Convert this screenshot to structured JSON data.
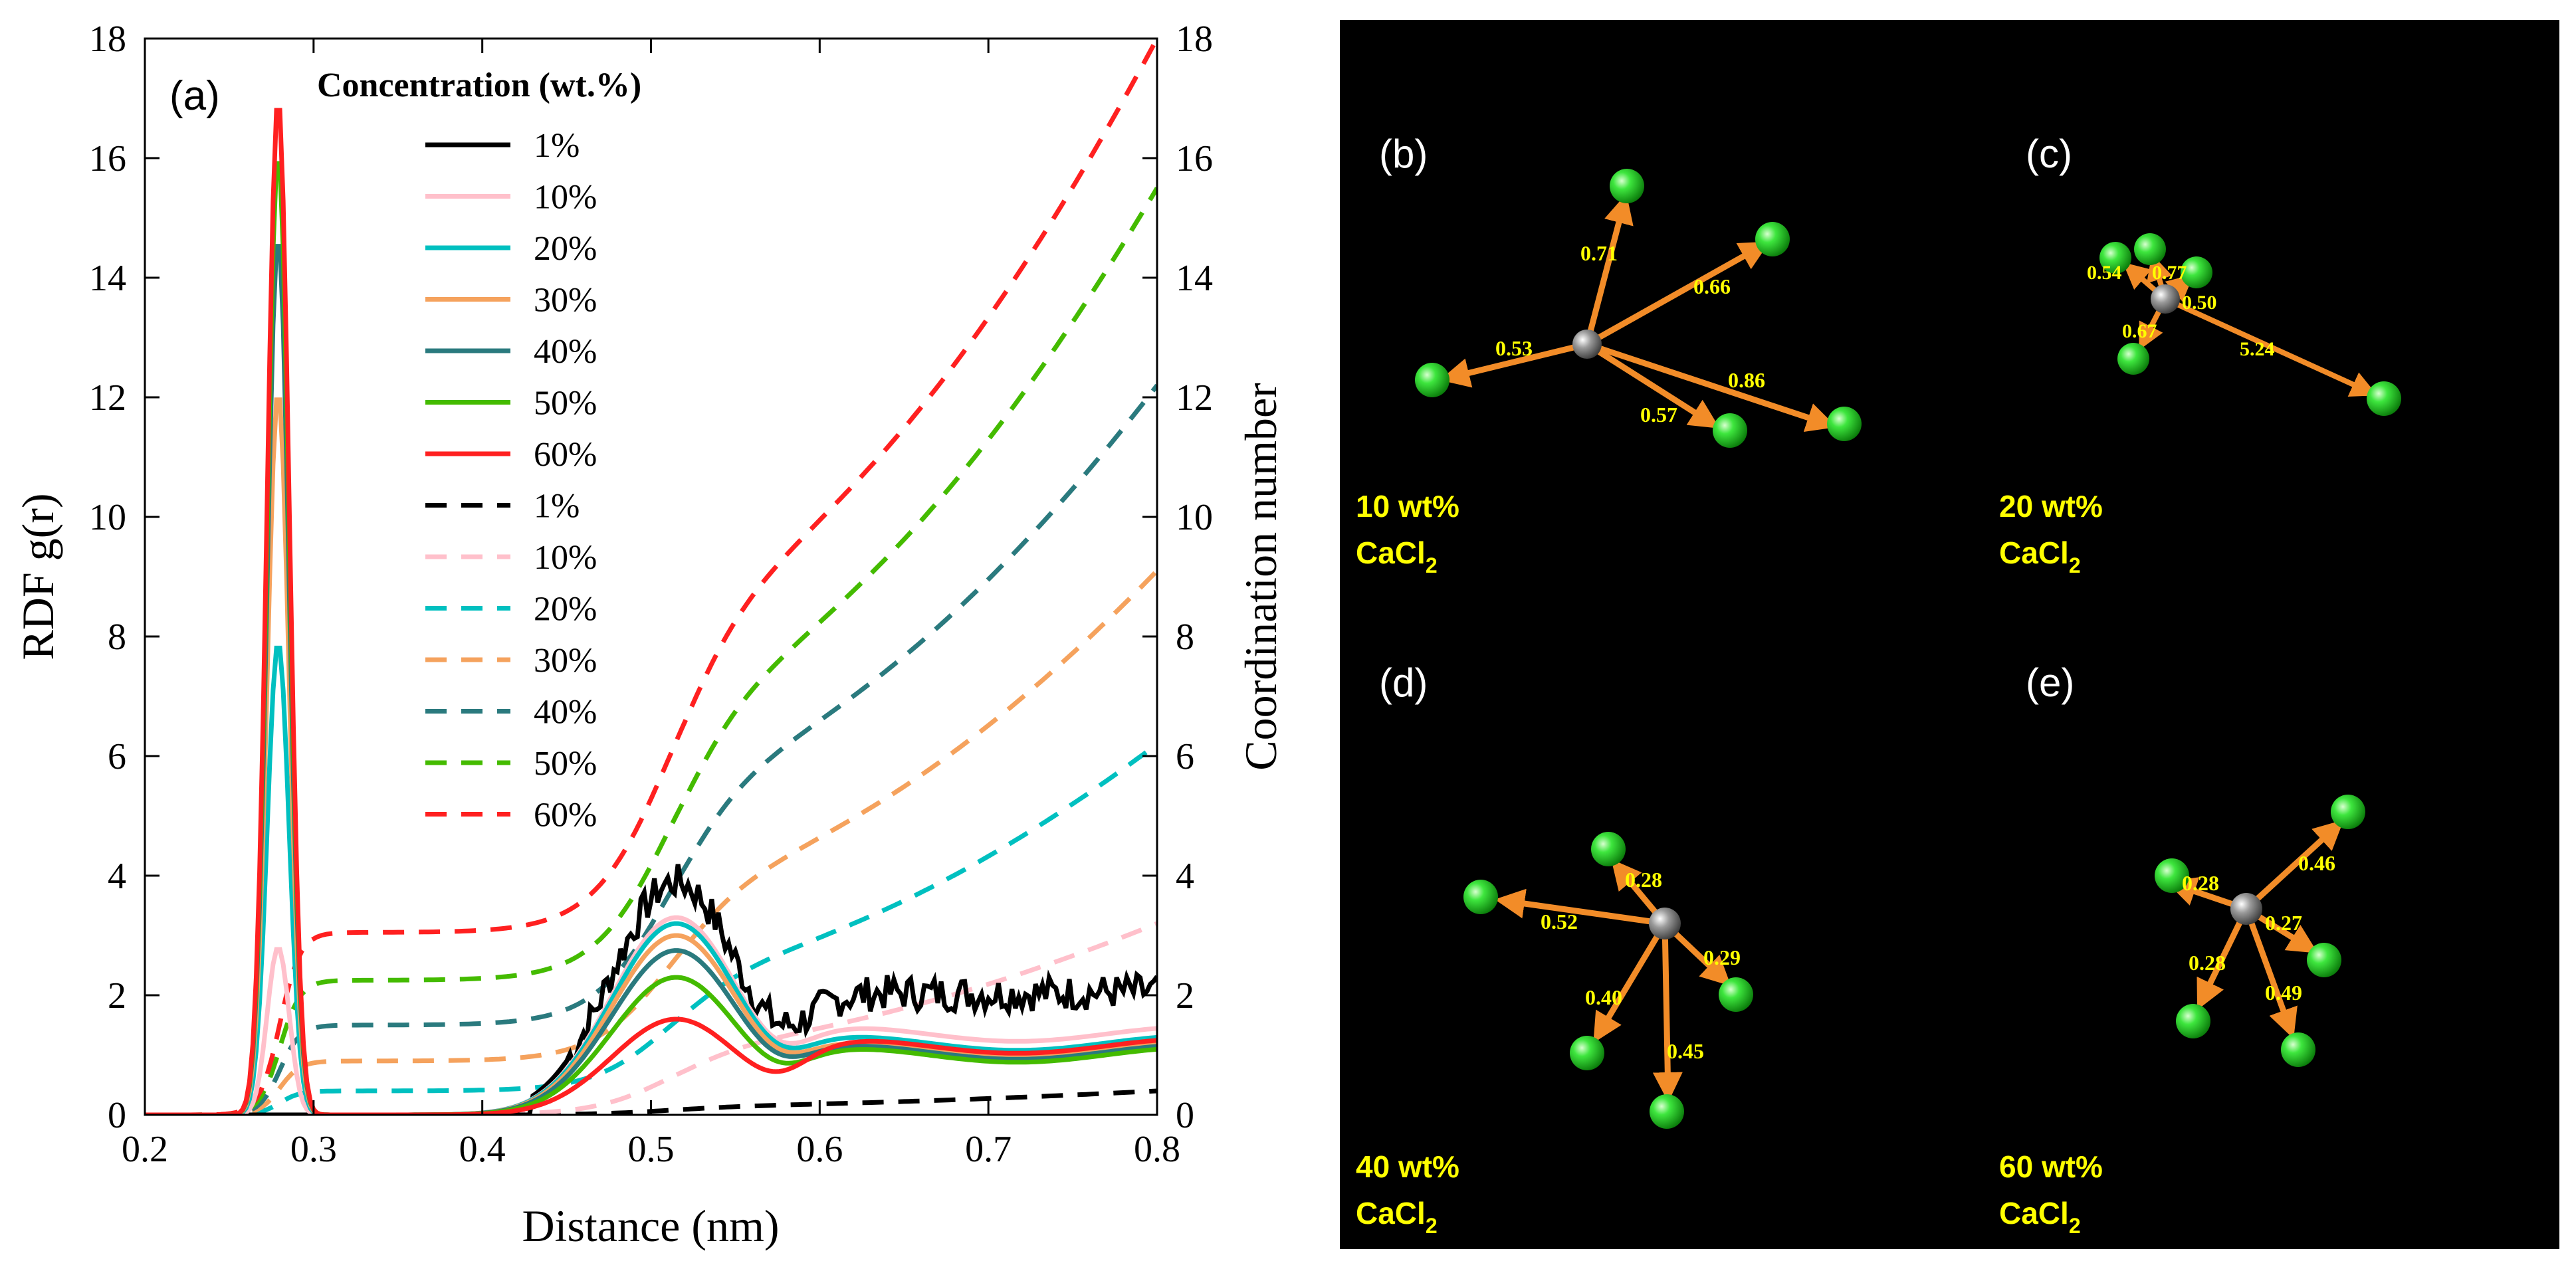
{
  "chart_data": {
    "type": "line",
    "panel_label": "(a)",
    "xlabel": "Distance (nm)",
    "ylabel_left": "RDF g(r)",
    "ylabel_right": "Coordination number",
    "xlim": [
      0.2,
      0.8
    ],
    "ylim_left": [
      0,
      18
    ],
    "ylim_right": [
      0,
      18
    ],
    "x_ticks": [
      "0.2",
      "0.3",
      "0.4",
      "0.5",
      "0.6",
      "0.7",
      "0.8"
    ],
    "y_ticks": [
      "0",
      "2",
      "4",
      "6",
      "8",
      "10",
      "12",
      "14",
      "16",
      "18"
    ],
    "legend_title": "Concentration (wt.%)",
    "colors": {
      "1%": "#000000",
      "10%": "#ffc0cb",
      "20%": "#00c0c0",
      "30%": "#f5a25d",
      "40%": "#2a7a7e",
      "50%": "#44bb00",
      "60%": "#ff2020"
    },
    "rdf_series": [
      {
        "name": "1%",
        "peak1": 0.0,
        "peak2": 3.9,
        "tail": 1.9,
        "noisy": true
      },
      {
        "name": "10%",
        "peak1": 2.8,
        "peak2": 3.3,
        "tail": 1.35
      },
      {
        "name": "20%",
        "peak1": 7.9,
        "peak2": 3.2,
        "tail": 1.2
      },
      {
        "name": "30%",
        "peak1": 12.1,
        "peak2": 3.0,
        "tail": 1.1
      },
      {
        "name": "40%",
        "peak1": 14.7,
        "peak2": 2.75,
        "tail": 1.05
      },
      {
        "name": "50%",
        "peak1": 16.1,
        "peak2": 2.3,
        "tail": 1.0
      },
      {
        "name": "60%",
        "peak1": 17.0,
        "peak2": 1.6,
        "tail": 1.15
      }
    ],
    "cn_series": [
      {
        "name": "1%",
        "plateau": 0.0,
        "mid": 0.15,
        "end": 0.4
      },
      {
        "name": "10%",
        "plateau": 0.0,
        "mid": 1.2,
        "end": 3.2
      },
      {
        "name": "20%",
        "plateau": 0.4,
        "mid": 2.5,
        "end": 6.2
      },
      {
        "name": "30%",
        "plateau": 0.9,
        "mid": 4.0,
        "end": 9.1
      },
      {
        "name": "40%",
        "plateau": 1.5,
        "mid": 5.8,
        "end": 12.2
      },
      {
        "name": "50%",
        "plateau": 2.25,
        "mid": 7.2,
        "end": 15.5
      },
      {
        "name": "60%",
        "plateau": 3.05,
        "mid": 8.8,
        "end": 18.0
      }
    ],
    "legend": {
      "solid": [
        "1%",
        "10%",
        "20%",
        "30%",
        "40%",
        "50%",
        "60%"
      ],
      "dashed": [
        "1%",
        "10%",
        "20%",
        "30%",
        "40%",
        "50%",
        "60%"
      ]
    }
  },
  "snapshots": {
    "species": "CaCl",
    "subscript": "2",
    "panels": [
      {
        "label": "(b)",
        "concentration": "10 wt%",
        "distances": [
          "0.71",
          "0.66",
          "0.53",
          "0.86",
          "0.57"
        ]
      },
      {
        "label": "(c)",
        "concentration": "20 wt%",
        "distances": [
          "0.54",
          "0.77",
          "0.50",
          "0.67",
          "5.24"
        ]
      },
      {
        "label": "(d)",
        "concentration": "40 wt%",
        "distances": [
          "0.28",
          "0.52",
          "0.29",
          "0.40",
          "0.45"
        ]
      },
      {
        "label": "(e)",
        "concentration": "60 wt%",
        "distances": [
          "0.28",
          "0.46",
          "0.27",
          "0.28",
          "0.49"
        ]
      }
    ]
  }
}
